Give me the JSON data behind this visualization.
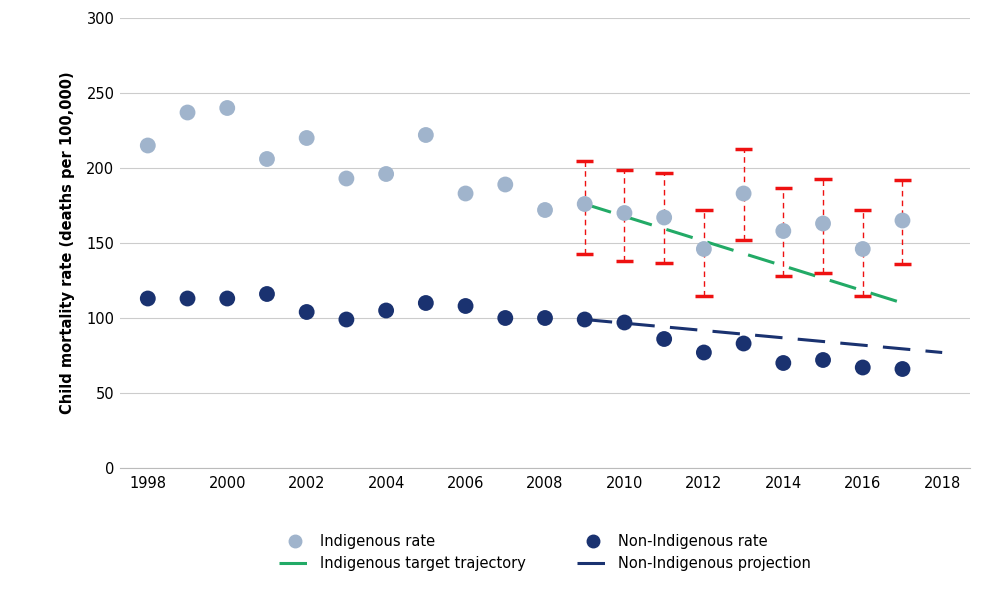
{
  "ylabel": "Child mortality rate (deaths per 100,000)",
  "xlim": [
    1997.3,
    2018.7
  ],
  "ylim": [
    0,
    300
  ],
  "yticks": [
    0,
    50,
    100,
    150,
    200,
    250,
    300
  ],
  "xticks": [
    1998,
    2000,
    2002,
    2004,
    2006,
    2008,
    2010,
    2012,
    2014,
    2016,
    2018
  ],
  "indigenous_years": [
    1998,
    1999,
    2000,
    2001,
    2002,
    2003,
    2004,
    2005,
    2006,
    2007,
    2008,
    2009,
    2010,
    2011,
    2012,
    2013,
    2014,
    2015,
    2016,
    2017
  ],
  "indigenous_rates": [
    215,
    237,
    240,
    206,
    220,
    193,
    196,
    222,
    183,
    189,
    172,
    176,
    170,
    167,
    146,
    183,
    158,
    163,
    146,
    165
  ],
  "non_indigenous_years": [
    1998,
    1999,
    2000,
    2001,
    2002,
    2003,
    2004,
    2005,
    2006,
    2007,
    2008,
    2009,
    2010,
    2011,
    2012,
    2013,
    2014,
    2015,
    2016,
    2017
  ],
  "non_indigenous_rates": [
    113,
    113,
    113,
    116,
    104,
    99,
    105,
    110,
    108,
    100,
    100,
    99,
    97,
    86,
    77,
    83,
    70,
    72,
    67,
    66
  ],
  "traj_years": [
    2009,
    2017
  ],
  "traj_rates": [
    176,
    110
  ],
  "proj_years": [
    2009,
    2018
  ],
  "proj_rates": [
    99,
    77
  ],
  "error_bar_years": [
    2009,
    2010,
    2011,
    2012,
    2013,
    2014,
    2015,
    2016,
    2017
  ],
  "error_bar_centers": [
    176,
    170,
    167,
    146,
    183,
    158,
    163,
    146,
    165
  ],
  "error_bar_lower": [
    143,
    138,
    137,
    115,
    152,
    128,
    130,
    115,
    136
  ],
  "error_bar_upper": [
    205,
    199,
    197,
    172,
    213,
    187,
    193,
    172,
    192
  ],
  "indigenous_color": "#a0b4cc",
  "non_indigenous_color": "#1a3270",
  "traj_color": "#22aa66",
  "proj_color": "#1a3270",
  "error_color": "#ee1111",
  "bg_color": "#ffffff",
  "grid_color": "#cccccc"
}
